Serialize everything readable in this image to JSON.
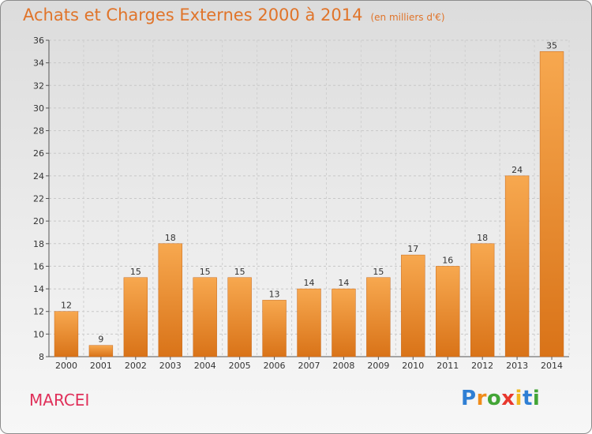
{
  "title": "Achats et Charges Externes 2000 à 2014",
  "subtitle": "(en milliers d'€)",
  "commune": "MARCEI",
  "brand": {
    "letters": [
      "P",
      "r",
      "o",
      "x",
      "i",
      "t",
      "i"
    ],
    "colors": [
      "#2f7fd4",
      "#f08c1a",
      "#43a536",
      "#e8382d",
      "#f0b81e",
      "#2f7fd4",
      "#43a536"
    ]
  },
  "colors": {
    "bar_light": "#f7a84f",
    "bar_dark": "#d97318",
    "title": "#e0742a",
    "commune": "#e0305a"
  },
  "chart_data": {
    "type": "bar",
    "title": "Achats et Charges Externes 2000 à 2014",
    "subtitle": "(en milliers d'€)",
    "categories": [
      "2000",
      "2001",
      "2002",
      "2003",
      "2004",
      "2005",
      "2006",
      "2007",
      "2008",
      "2009",
      "2010",
      "2011",
      "2012",
      "2013",
      "2014"
    ],
    "values": [
      12,
      9,
      15,
      18,
      15,
      15,
      13,
      14,
      14,
      15,
      17,
      16,
      18,
      24,
      35
    ],
    "ylim": [
      8,
      36
    ],
    "yticks": [
      8,
      10,
      12,
      14,
      16,
      18,
      20,
      22,
      24,
      26,
      28,
      30,
      32,
      34,
      36
    ],
    "grid": true,
    "data_labels": true
  }
}
